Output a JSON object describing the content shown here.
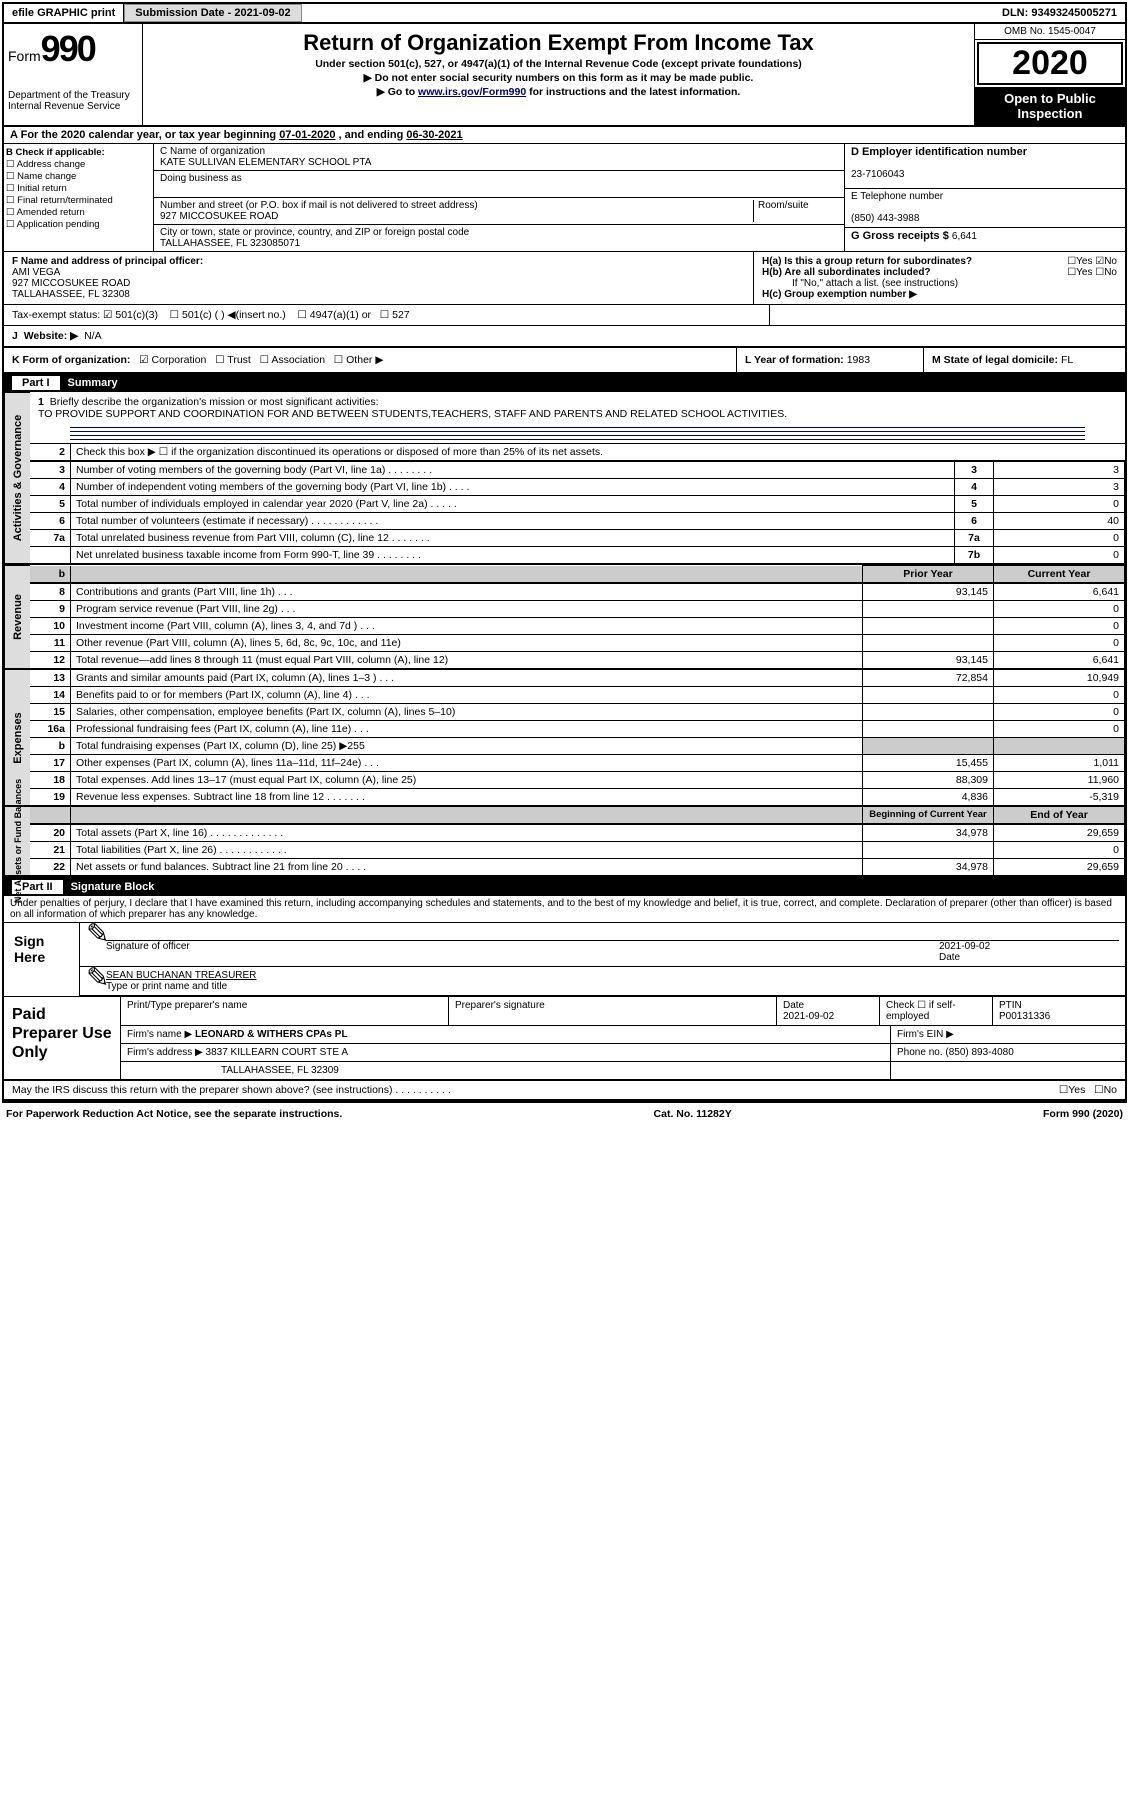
{
  "top": {
    "efile": "efile GRAPHIC print",
    "subdate_lbl": "Submission Date - ",
    "subdate": "2021-09-02",
    "dln_lbl": "DLN: ",
    "dln": "93493245005271"
  },
  "hdr": {
    "form": "Form",
    "num": "990",
    "dept": "Department of the Treasury\nInternal Revenue Service",
    "title": "Return of Organization Exempt From Income Tax",
    "sub1": "Under section 501(c), 527, or 4947(a)(1) of the Internal Revenue Code (except private foundations)",
    "sub2": "▶ Do not enter social security numbers on this form as it may be made public.",
    "sub3a": "▶ Go to ",
    "sub3link": "www.irs.gov/Form990",
    "sub3b": " for instructions and the latest information.",
    "omb": "OMB No. 1545-0047",
    "year": "2020",
    "pub": "Open to Public Inspection"
  },
  "A": {
    "text_a": "For the 2020 calendar year, or tax year beginning ",
    "begin": "07-01-2020",
    "text_b": " , and ending ",
    "end": "06-30-2021"
  },
  "B": {
    "lbl": "B Check if applicable:",
    "opts": [
      "☐ Address change",
      "☐ Name change",
      "☐ Initial return",
      "☐ Final return/terminated",
      "☐ Amended return",
      "☐ Application pending"
    ]
  },
  "C": {
    "name_lbl": "C Name of organization",
    "name": "KATE SULLIVAN ELEMENTARY SCHOOL PTA",
    "dba_lbl": "Doing business as",
    "dba": "",
    "addr_lbl": "Number and street (or P.O. box if mail is not delivered to street address)",
    "room_lbl": "Room/suite",
    "addr": "927 MICCOSUKEE ROAD",
    "city_lbl": "City or town, state or province, country, and ZIP or foreign postal code",
    "city": "TALLAHASSEE, FL  323085071"
  },
  "D": {
    "lbl": "D Employer identification number",
    "val": "23-7106043"
  },
  "E": {
    "lbl": "E Telephone number",
    "val": "(850) 443-3988"
  },
  "G": {
    "lbl": "G Gross receipts $ ",
    "val": "6,641"
  },
  "F": {
    "lbl": "F  Name and address of principal officer:",
    "name": "AMI VEGA",
    "l1": "927 MICCOSUKEE ROAD",
    "l2": "TALLAHASSEE, FL  32308"
  },
  "H": {
    "a_lbl": "H(a)  Is this a group return for subordinates?",
    "a_yes": "☐Yes",
    "a_no": "☑No",
    "b_lbl": "H(b)  Are all subordinates included?",
    "b_yes": "☐Yes",
    "b_no": "☐No",
    "b_note": "If \"No,\" attach a list. (see instructions)",
    "c_lbl": "H(c)  Group exemption number ▶"
  },
  "I": {
    "lbl": "Tax-exempt status:",
    "c3": "501(c)(3)",
    "c": "501(c) (  ) ◀(insert no.)",
    "a1": "4947(a)(1) or",
    "s527": "527"
  },
  "J": {
    "lbl": "Website: ▶",
    "val": "N/A"
  },
  "K": {
    "lbl": "K Form of organization:",
    "corp": "Corporation",
    "trust": "Trust",
    "assoc": "Association",
    "other": "Other ▶"
  },
  "L": {
    "lbl": "L Year of formation: ",
    "val": "1983"
  },
  "M": {
    "lbl": "M State of legal domicile: ",
    "val": "FL"
  },
  "p1_title": "Summary",
  "p1_1_lbl": "Briefly describe the organization's mission or most significant activities:",
  "p1_1_txt": "TO PROVIDE SUPPORT AND COORDINATION FOR AND BETWEEN STUDENTS,TEACHERS, STAFF AND PARENTS AND RELATED SCHOOL ACTIVITIES.",
  "p1_2": "Check this box ▶ ☐  if the organization discontinued its operations or disposed of more than 25% of its net assets.",
  "rows_ag": [
    {
      "n": "3",
      "t": "Number of voting members of the governing body (Part VI, line 1a)  .   .   .   .   .   .   .   .",
      "b": "3",
      "v": "3"
    },
    {
      "n": "4",
      "t": "Number of independent voting members of the governing body (Part VI, line 1b)  .   .   .   .",
      "b": "4",
      "v": "3"
    },
    {
      "n": "5",
      "t": "Total number of individuals employed in calendar year 2020 (Part V, line 2a)  .   .   .   .   .",
      "b": "5",
      "v": "0"
    },
    {
      "n": "6",
      "t": "Total number of volunteers (estimate if necessary)   .   .   .   .   .   .   .   .   .   .   .   .",
      "b": "6",
      "v": "40"
    },
    {
      "n": "7a",
      "t": "Total unrelated business revenue from Part VIII, column (C), line 12  .   .   .   .   .   .   .",
      "b": "7a",
      "v": "0"
    },
    {
      "n": "",
      "t": "Net unrelated business taxable income from Form 990-T, line 39  .   .   .   .   .   .   .   .",
      "b": "7b",
      "v": "0"
    }
  ],
  "hdr_prior": "Prior Year",
  "hdr_curr": "Current Year",
  "rows_rev": [
    {
      "n": "8",
      "t": "Contributions and grants (Part VIII, line 1h)   .   .   .",
      "p": "93,145",
      "c": "6,641"
    },
    {
      "n": "9",
      "t": "Program service revenue (Part VIII, line 2g)   .   .   .",
      "p": "",
      "c": "0"
    },
    {
      "n": "10",
      "t": "Investment income (Part VIII, column (A), lines 3, 4, and 7d )   .   .   .",
      "p": "",
      "c": "0"
    },
    {
      "n": "11",
      "t": "Other revenue (Part VIII, column (A), lines 5, 6d, 8c, 9c, 10c, and 11e)",
      "p": "",
      "c": "0"
    },
    {
      "n": "12",
      "t": "Total revenue—add lines 8 through 11 (must equal Part VIII, column (A), line 12)",
      "p": "93,145",
      "c": "6,641"
    }
  ],
  "rows_exp": [
    {
      "n": "13",
      "t": "Grants and similar amounts paid (Part IX, column (A), lines 1–3 )  .   .   .",
      "p": "72,854",
      "c": "10,949"
    },
    {
      "n": "14",
      "t": "Benefits paid to or for members (Part IX, column (A), line 4)  .   .   .",
      "p": "",
      "c": "0"
    },
    {
      "n": "15",
      "t": "Salaries, other compensation, employee benefits (Part IX, column (A), lines 5–10)",
      "p": "",
      "c": "0"
    },
    {
      "n": "16a",
      "t": "Professional fundraising fees (Part IX, column (A), line 11e)  .   .   .",
      "p": "",
      "c": "0"
    },
    {
      "n": "b",
      "t": "Total fundraising expenses (Part IX, column (D), line 25) ▶255",
      "p": "shade",
      "c": "shade"
    },
    {
      "n": "17",
      "t": "Other expenses (Part IX, column (A), lines 11a–11d, 11f–24e)  .   .   .",
      "p": "15,455",
      "c": "1,011"
    },
    {
      "n": "18",
      "t": "Total expenses. Add lines 13–17 (must equal Part IX, column (A), line 25)",
      "p": "88,309",
      "c": "11,960"
    },
    {
      "n": "19",
      "t": "Revenue less expenses. Subtract line 18 from line 12  .   .   .   .   .   .   .",
      "p": "4,836",
      "c": "-5,319"
    }
  ],
  "hdr_boy": "Beginning of Current Year",
  "hdr_eoy": "End of Year",
  "rows_na": [
    {
      "n": "20",
      "t": "Total assets (Part X, line 16)  .   .   .   .   .   .   .   .   .   .   .   .   .",
      "p": "34,978",
      "c": "29,659"
    },
    {
      "n": "21",
      "t": "Total liabilities (Part X, line 26)  .   .   .   .   .   .   .   .   .   .   .   .",
      "p": "",
      "c": "0"
    },
    {
      "n": "22",
      "t": "Net assets or fund balances. Subtract line 21 from line 20  .   .   .   .",
      "p": "34,978",
      "c": "29,659"
    }
  ],
  "p2_title": "Signature Block",
  "p2_decl": "Under penalties of perjury, I declare that I have examined this return, including accompanying schedules and statements, and to the best of my knowledge and belief, it is true, correct, and complete. Declaration of preparer (other than officer) is based on all information of which preparer has any knowledge.",
  "sign_lbl": "Sign Here",
  "sig_of": "Signature of officer",
  "sig_date_lbl": "Date",
  "sig_date": "2021-09-02",
  "sig_name": "SEAN BUCHANAN  TREASURER",
  "sig_name_lbl": "Type or print name and title",
  "prep_lbl": "Paid Preparer Use Only",
  "prep_r1": {
    "a": "Print/Type preparer's name",
    "b": "Preparer's signature",
    "c": "Date",
    "cv": "2021-09-02",
    "d": "Check ☐ if self-employed",
    "e": "PTIN",
    "ev": "P00131336"
  },
  "prep_r2": {
    "a": "Firm's name     ▶",
    "av": "LEONARD & WITHERS CPAs PL",
    "b": "Firm's EIN ▶"
  },
  "prep_r3": {
    "a": "Firm's address ▶",
    "av": "3837 KILLEARN COURT STE A",
    "b": "Phone no. (850) 893-4080"
  },
  "prep_r3b": "TALLAHASSEE, FL  32309",
  "discuss": "May the IRS discuss this return with the preparer shown above? (see instructions)   .   .   .   .   .   .   .   .   .   .",
  "discuss_yes": "☐Yes",
  "discuss_no": "☐No",
  "foot": {
    "l": "For Paperwork Reduction Act Notice, see the separate instructions.",
    "c": "Cat. No. 11282Y",
    "r": "Form 990 (2020)"
  },
  "vt": {
    "ag": "Activities & Governance",
    "rev": "Revenue",
    "exp": "Expenses",
    "na": "Net Assets or Fund Balances"
  }
}
